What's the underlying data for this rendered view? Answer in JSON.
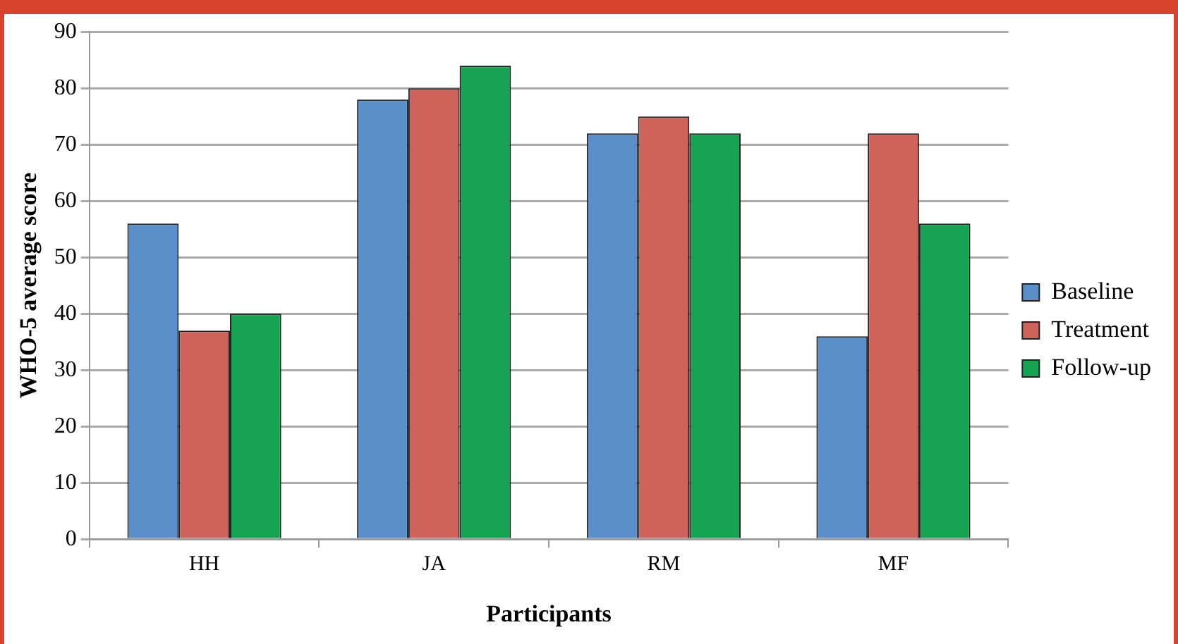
{
  "chart_data": {
    "type": "bar",
    "xlabel": "Participants",
    "ylabel": "WHO-5 average score",
    "categories": [
      "HH",
      "JA",
      "RM",
      "MF"
    ],
    "series": [
      {
        "name": "Baseline",
        "color": "#5b8fc9",
        "values": [
          56,
          78,
          72,
          36
        ]
      },
      {
        "name": "Treatment",
        "color": "#cf625b",
        "values": [
          37,
          80,
          75,
          72
        ]
      },
      {
        "name": "Follow-up",
        "color": "#17a452",
        "values": [
          40,
          84,
          72,
          56
        ]
      }
    ],
    "ylim": [
      0,
      90
    ],
    "yticks": [
      0,
      10,
      20,
      30,
      40,
      50,
      60,
      70,
      80,
      90
    ],
    "grid": "y",
    "legend": "right"
  }
}
